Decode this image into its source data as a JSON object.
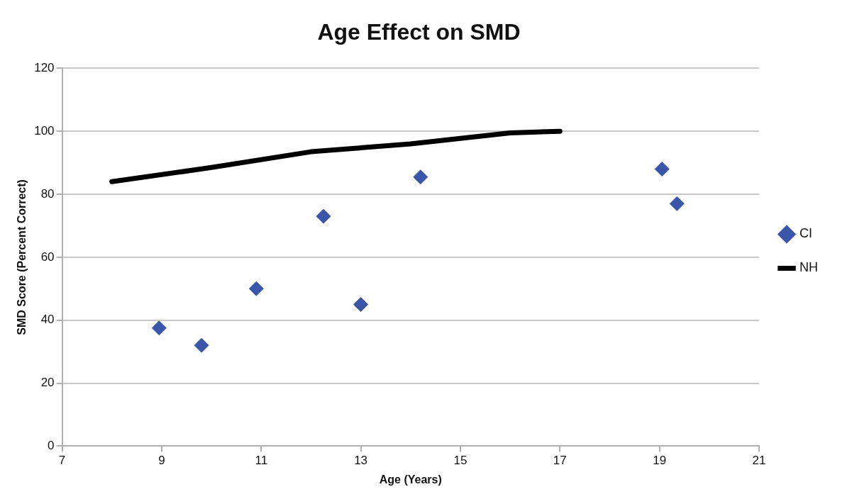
{
  "chart_data": {
    "type": "scatter",
    "title": "Age Effect on SMD",
    "xlabel": "Age (Years)",
    "ylabel": "SMD Score (Percent Correct)",
    "xlim": [
      7,
      21
    ],
    "xticks": [
      7,
      9,
      11,
      13,
      15,
      17,
      19,
      21
    ],
    "ylim": [
      0,
      120
    ],
    "yticks": [
      0,
      20,
      40,
      60,
      80,
      100,
      120
    ],
    "grid": "y",
    "legend": "right",
    "series": [
      {
        "name": "CI",
        "type": "scatter",
        "marker": "diamond",
        "color": "#3a56a8",
        "x": [
          8.95,
          9.8,
          10.9,
          12.25,
          13.0,
          14.2,
          19.05,
          19.35
        ],
        "values": [
          37.5,
          32,
          50,
          73,
          45,
          85.5,
          88,
          77
        ]
      },
      {
        "name": "NH",
        "type": "line",
        "marker": "none",
        "color": "#000000",
        "x": [
          8,
          10,
          12,
          14,
          16,
          17
        ],
        "values": [
          84,
          88.5,
          93.5,
          96,
          99.5,
          100
        ]
      }
    ]
  }
}
